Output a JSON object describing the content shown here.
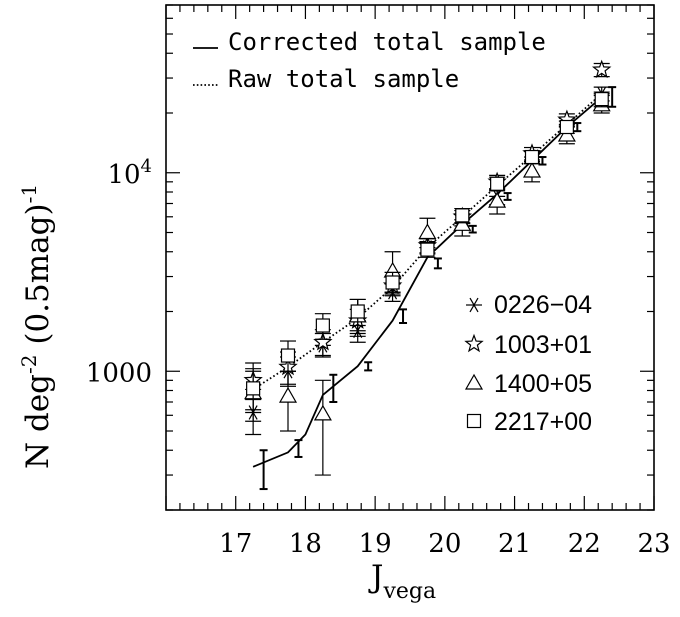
{
  "chart_data": {
    "type": "line",
    "xlim": [
      16,
      23
    ],
    "ylim": [
      200,
      70000
    ],
    "y_scale": "log",
    "grid": false,
    "x_ticks": [
      "17",
      "18",
      "19",
      "20",
      "21",
      "22",
      "23"
    ],
    "y_ticks": [
      {
        "value": 1000,
        "label": "1000"
      },
      {
        "value": 10000,
        "label_base": "10",
        "label_exp": "4"
      }
    ],
    "xlabel_main": "J",
    "xlabel_sub": "vega",
    "ylabel": {
      "p1": "N deg",
      "p1_sup": "-2",
      "p2": " (0.5mag)",
      "p2_sup": "-1"
    },
    "legend_lines": [
      {
        "label": "Corrected total sample",
        "style": "solid"
      },
      {
        "label": "Raw total sample",
        "style": "dotted"
      }
    ],
    "legend_markers": [
      {
        "label": "0226−04",
        "marker": "asterisk"
      },
      {
        "label": "1003+01",
        "marker": "star"
      },
      {
        "label": "1400+05",
        "marker": "triangle"
      },
      {
        "label": "2217+00",
        "marker": "square"
      }
    ],
    "series": [
      {
        "name": "Corrected total sample",
        "style": "solid",
        "x": [
          17.25,
          17.75,
          18.0,
          18.25,
          18.75,
          19.25,
          19.75,
          20.25,
          20.75,
          21.25,
          21.75,
          22.25
        ],
        "y": [
          330,
          390,
          480,
          760,
          1060,
          1800,
          3750,
          5500,
          7800,
          11500,
          17000,
          24000
        ]
      },
      {
        "name": "Raw total sample",
        "style": "dotted",
        "x": [
          17.25,
          17.75,
          18.25,
          18.75,
          19.25,
          19.75,
          20.25,
          20.75,
          21.25,
          21.75,
          22.25
        ],
        "y": [
          810,
          1050,
          1400,
          1850,
          2650,
          4200,
          6000,
          8600,
          12200,
          17500,
          25000
        ]
      }
    ],
    "corrected_errorbars": [
      {
        "x": 17.4,
        "y": 330,
        "lo": 255,
        "hi": 400
      },
      {
        "x": 17.9,
        "y": 405,
        "lo": 370,
        "hi": 450
      },
      {
        "x": 18.4,
        "y": 850,
        "lo": 700,
        "hi": 960
      },
      {
        "x": 18.9,
        "y": 1060,
        "lo": 1010,
        "hi": 1110
      },
      {
        "x": 19.4,
        "y": 1900,
        "lo": 1750,
        "hi": 2050
      },
      {
        "x": 19.9,
        "y": 3500,
        "lo": 3300,
        "hi": 3700
      },
      {
        "x": 20.4,
        "y": 5200,
        "lo": 5000,
        "hi": 5400
      },
      {
        "x": 20.9,
        "y": 7600,
        "lo": 7300,
        "hi": 7900
      },
      {
        "x": 21.4,
        "y": 11500,
        "lo": 11000,
        "hi": 12000
      },
      {
        "x": 21.9,
        "y": 17000,
        "lo": 16200,
        "hi": 17800
      },
      {
        "x": 22.4,
        "y": 24000,
        "lo": 21500,
        "hi": 27000
      }
    ],
    "fields": [
      {
        "name": "0226−04",
        "marker": "asterisk",
        "points": [
          {
            "x": 17.25,
            "y": 620,
            "lo": 480,
            "hi": 810
          },
          {
            "x": 17.75,
            "y": 1000,
            "lo": 840,
            "hi": 1180
          },
          {
            "x": 18.25,
            "y": 1350,
            "lo": 1180,
            "hi": 1550
          },
          {
            "x": 18.75,
            "y": 1600,
            "lo": 1400,
            "hi": 1800
          },
          {
            "x": 19.25,
            "y": 2500,
            "lo": 2250,
            "hi": 2750
          },
          {
            "x": 19.75,
            "y": 4200,
            "lo": 3900,
            "hi": 4500
          },
          {
            "x": 20.25,
            "y": 5800,
            "lo": 5400,
            "hi": 6200
          },
          {
            "x": 20.75,
            "y": 7600,
            "lo": 6900,
            "hi": 8300
          },
          {
            "x": 21.25,
            "y": 12000,
            "lo": 11200,
            "hi": 12800
          },
          {
            "x": 21.75,
            "y": 17500,
            "lo": 16200,
            "hi": 18800
          },
          {
            "x": 22.25,
            "y": 25000,
            "lo": 23000,
            "hi": 27000
          }
        ]
      },
      {
        "name": "1003+01",
        "marker": "star",
        "points": [
          {
            "x": 17.25,
            "y": 900,
            "lo": 720,
            "hi": 1100
          },
          {
            "x": 17.75,
            "y": 1050,
            "lo": 860,
            "hi": 1250
          },
          {
            "x": 18.25,
            "y": 1400,
            "lo": 1200,
            "hi": 1620
          },
          {
            "x": 18.75,
            "y": 1800,
            "lo": 1550,
            "hi": 2050
          },
          {
            "x": 19.25,
            "y": 2700,
            "lo": 2400,
            "hi": 3000
          },
          {
            "x": 19.75,
            "y": 4300,
            "lo": 3950,
            "hi": 4650
          },
          {
            "x": 20.25,
            "y": 6000,
            "lo": 5550,
            "hi": 6450
          },
          {
            "x": 20.75,
            "y": 9000,
            "lo": 8300,
            "hi": 9700
          },
          {
            "x": 21.25,
            "y": 12500,
            "lo": 11600,
            "hi": 13400
          },
          {
            "x": 21.75,
            "y": 18500,
            "lo": 17200,
            "hi": 19800
          },
          {
            "x": 22.25,
            "y": 33000,
            "lo": 30500,
            "hi": 35500
          }
        ]
      },
      {
        "name": "1400+05",
        "marker": "triangle",
        "points": [
          {
            "x": 17.25,
            "y": 780,
            "lo": 560,
            "hi": 1000
          },
          {
            "x": 17.75,
            "y": 750,
            "lo": 500,
            "hi": 1000
          },
          {
            "x": 18.25,
            "y": 610,
            "lo": 300,
            "hi": 900
          },
          {
            "x": 18.75,
            "y": 1900,
            "lo": 1500,
            "hi": 2300
          },
          {
            "x": 19.25,
            "y": 3200,
            "lo": 2500,
            "hi": 4000
          },
          {
            "x": 19.75,
            "y": 5000,
            "lo": 4200,
            "hi": 5900
          },
          {
            "x": 20.25,
            "y": 5500,
            "lo": 4800,
            "hi": 6200
          },
          {
            "x": 20.75,
            "y": 7200,
            "lo": 6200,
            "hi": 8200
          },
          {
            "x": 21.25,
            "y": 10200,
            "lo": 9000,
            "hi": 11400
          },
          {
            "x": 21.75,
            "y": 15500,
            "lo": 14000,
            "hi": 17000
          },
          {
            "x": 22.25,
            "y": 22000,
            "lo": 20000,
            "hi": 24500
          }
        ]
      },
      {
        "name": "2217+00",
        "marker": "square",
        "points": [
          {
            "x": 17.25,
            "y": 820,
            "lo": 640,
            "hi": 1030
          },
          {
            "x": 17.75,
            "y": 1200,
            "lo": 1000,
            "hi": 1420
          },
          {
            "x": 18.25,
            "y": 1700,
            "lo": 1450,
            "hi": 1950
          },
          {
            "x": 18.75,
            "y": 2000,
            "lo": 1700,
            "hi": 2300
          },
          {
            "x": 19.25,
            "y": 2800,
            "lo": 2450,
            "hi": 3150
          },
          {
            "x": 19.75,
            "y": 4100,
            "lo": 3750,
            "hi": 4450
          },
          {
            "x": 20.25,
            "y": 6100,
            "lo": 5600,
            "hi": 6600
          },
          {
            "x": 20.75,
            "y": 8800,
            "lo": 8100,
            "hi": 9500
          },
          {
            "x": 21.25,
            "y": 12000,
            "lo": 11100,
            "hi": 12900
          },
          {
            "x": 21.75,
            "y": 17000,
            "lo": 15800,
            "hi": 18200
          },
          {
            "x": 22.25,
            "y": 23500,
            "lo": 21500,
            "hi": 25500
          }
        ]
      }
    ]
  }
}
